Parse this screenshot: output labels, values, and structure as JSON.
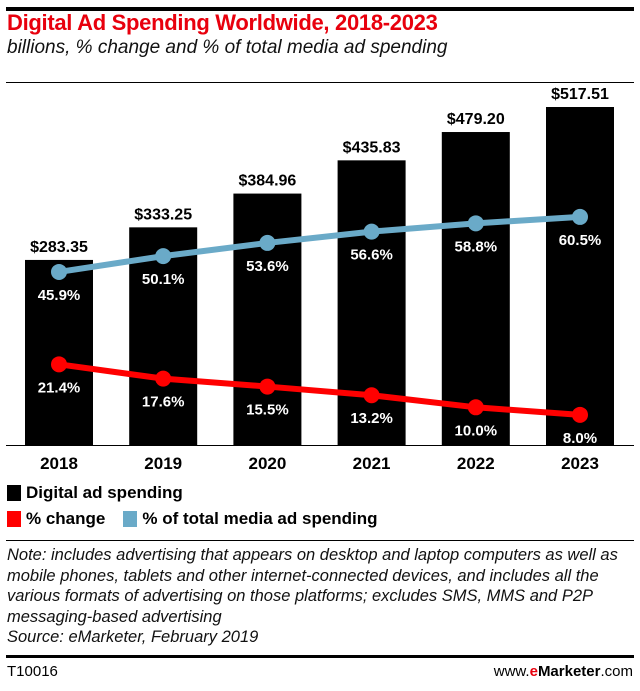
{
  "chart_data": {
    "type": "bar",
    "title": "Digital Ad Spending Worldwide, 2018-2023",
    "subtitle": "billions, % change and % of total media ad spending",
    "categories": [
      "2018",
      "2019",
      "2020",
      "2021",
      "2022",
      "2023"
    ],
    "series": [
      {
        "name": "Digital ad spending",
        "type": "bar",
        "color": "#000000",
        "values": [
          283.35,
          333.25,
          384.96,
          435.83,
          479.2,
          517.51
        ],
        "labels": [
          "$283.35",
          "$333.25",
          "$384.96",
          "$435.83",
          "$479.20",
          "$517.51"
        ]
      },
      {
        "name": "% change",
        "type": "line",
        "color": "#ff0000",
        "values": [
          21.4,
          17.6,
          15.5,
          13.2,
          10.0,
          8.0
        ],
        "labels": [
          "21.4%",
          "17.6%",
          "15.5%",
          "13.2%",
          "10.0%",
          "8.0%"
        ]
      },
      {
        "name": "% of total media ad spending",
        "type": "line",
        "color": "#6aaac8",
        "values": [
          45.9,
          50.1,
          53.6,
          56.6,
          58.8,
          60.5
        ],
        "labels": [
          "45.9%",
          "50.1%",
          "53.6%",
          "56.6%",
          "58.8%",
          "60.5%"
        ]
      }
    ],
    "grid": false,
    "legend": "bottom-left"
  },
  "note": "Note: includes advertising that appears on desktop and laptop computers as well as mobile phones, tablets and other internet-connected devices, and includes all the various formats of advertising on those platforms; excludes SMS, MMS and P2P messaging-based advertising",
  "source": "Source: eMarketer, February 2019",
  "footer": {
    "code": "T10016",
    "site_prefix": "www.",
    "site_brand_e": "e",
    "site_brand_rest": "Marketer",
    "site_suffix": ".com"
  }
}
